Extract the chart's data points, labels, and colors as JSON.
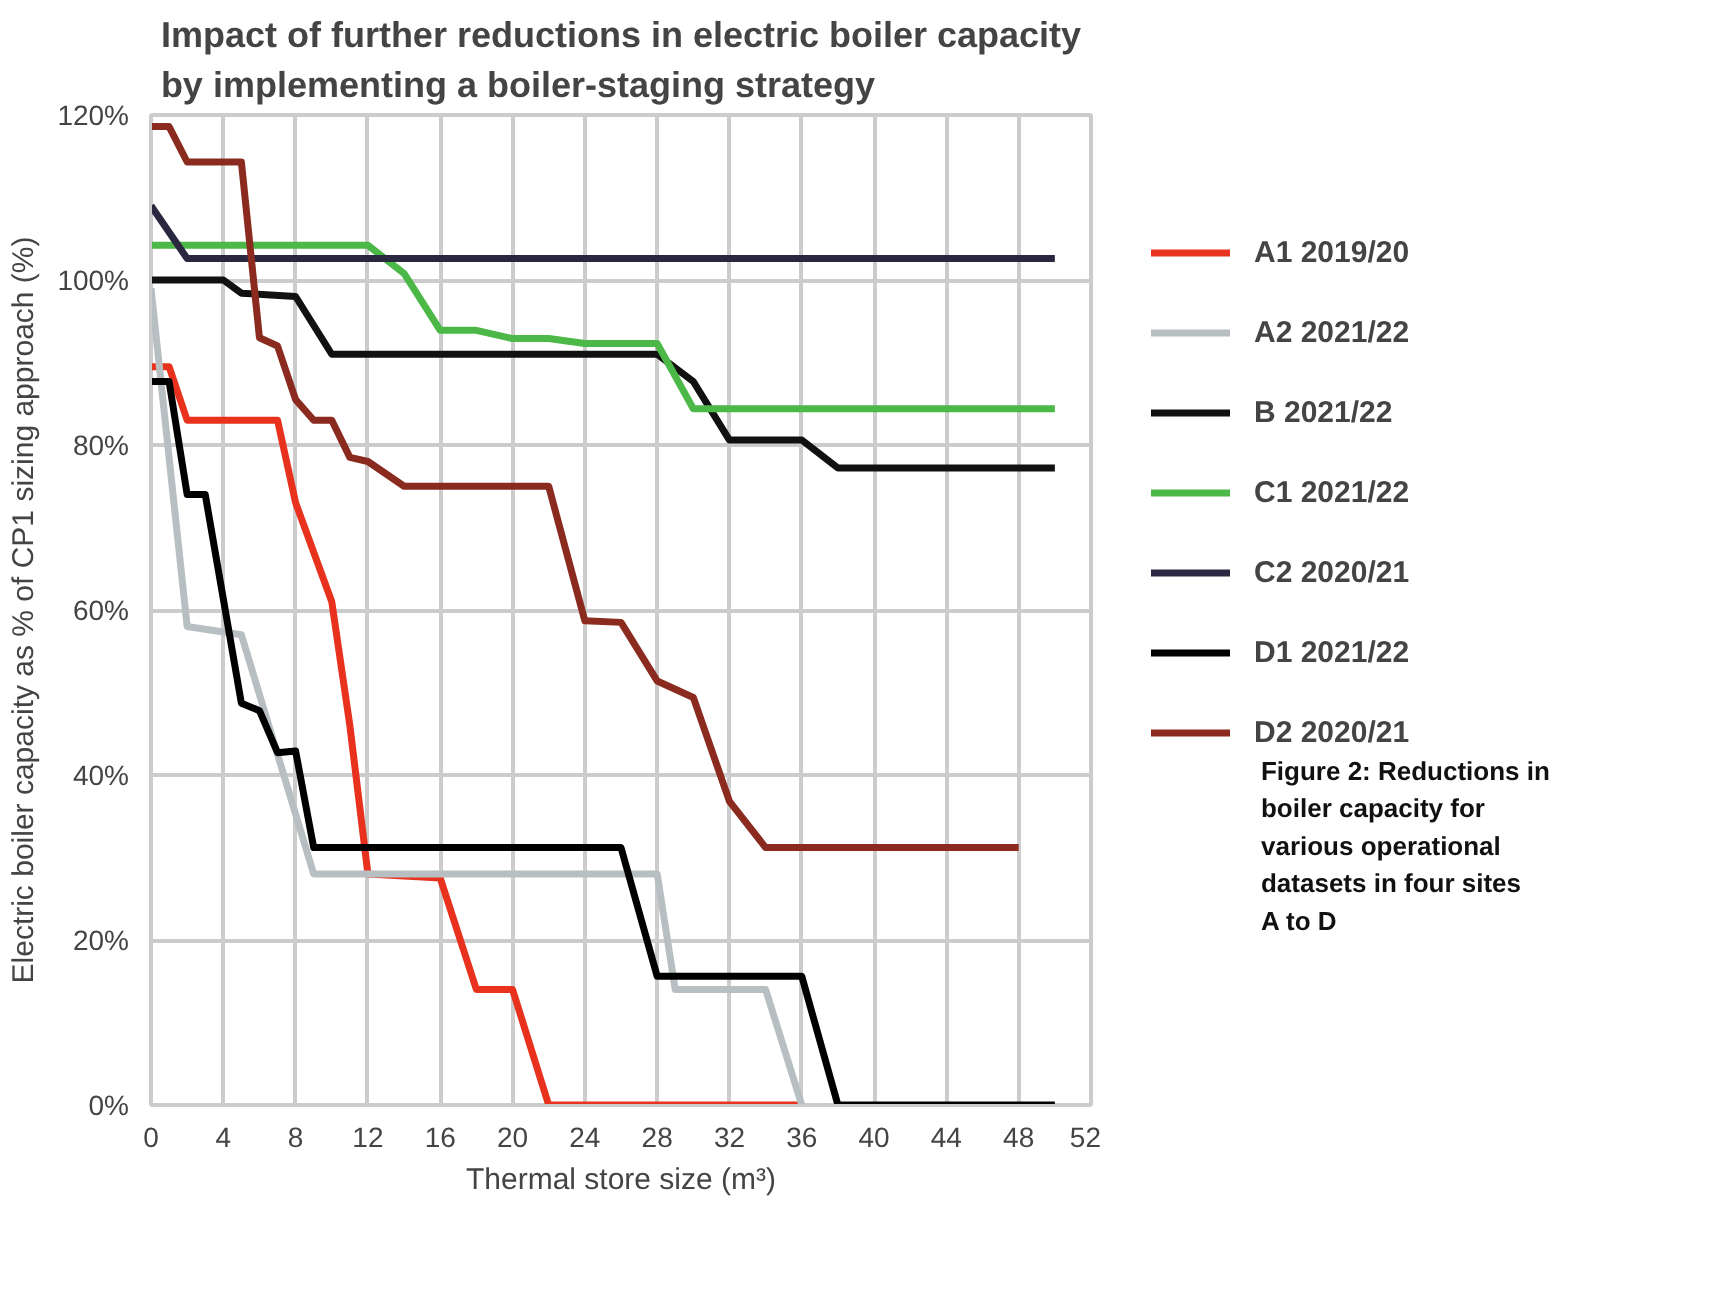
{
  "chart_data": {
    "type": "line",
    "title": "Impact of further reductions in electric boiler capacity by implementing a boiler-staging strategy",
    "xlabel": "Thermal store size (m³)",
    "ylabel": "Electric boiler capacity as % of CP1 sizing approach (%)",
    "xlim": [
      0,
      52
    ],
    "xticks": [
      0,
      4,
      8,
      12,
      16,
      20,
      24,
      28,
      32,
      36,
      40,
      44,
      48,
      52
    ],
    "ylim": [
      0,
      120
    ],
    "yticks": [
      {
        "value": 0,
        "label": "0%"
      },
      {
        "value": 20,
        "label": "20%"
      },
      {
        "value": 40,
        "label": "40%"
      },
      {
        "value": 60,
        "label": "60%"
      },
      {
        "value": 80,
        "label": "80%"
      },
      {
        "value": 100,
        "label": "100%"
      },
      {
        "value": 120,
        "label": "120%"
      }
    ],
    "grid": true,
    "legend": "right",
    "marker": "none",
    "line_style": "solid",
    "annotations": [
      "Figure 2: Reductions in boiler capacity for various operational datasets in four sites A to D"
    ],
    "series": [
      {
        "name": "A1 2019/20",
        "color": "#e8321e",
        "x": [
          0,
          1,
          2,
          7,
          8,
          10,
          11,
          12,
          16,
          18,
          20,
          22,
          36
        ],
        "values": [
          89.5,
          89.5,
          83,
          83,
          73,
          61,
          46,
          28,
          27.5,
          14,
          14,
          0,
          0
        ]
      },
      {
        "name": "A2 2021/22",
        "color": "#b8bfc2",
        "x": [
          0,
          2,
          5,
          9,
          28,
          29,
          34,
          36
        ],
        "values": [
          99,
          58,
          57,
          28,
          28,
          14,
          14,
          0
        ]
      },
      {
        "name": "B 2021/22",
        "color": "#111111",
        "x": [
          0,
          4,
          5,
          8,
          10,
          28,
          30,
          32,
          36,
          38,
          50
        ],
        "values": [
          100,
          100,
          98.4,
          98,
          91,
          91,
          87.7,
          80.6,
          80.6,
          77.2,
          77.2
        ]
      },
      {
        "name": "C1 2021/22",
        "color": "#4cb848",
        "x": [
          0,
          12,
          14,
          16,
          18,
          20,
          22,
          24,
          28,
          30,
          50
        ],
        "values": [
          104.2,
          104.2,
          100.8,
          93.9,
          93.9,
          92.9,
          92.9,
          92.3,
          92.3,
          84.4,
          84.4
        ]
      },
      {
        "name": "C2 2020/21",
        "color": "#2a2840",
        "x": [
          0,
          2,
          50
        ],
        "values": [
          109,
          102.6,
          102.6
        ]
      },
      {
        "name": "D1 2021/22",
        "color": "#000000",
        "x": [
          0,
          1,
          2,
          3,
          5,
          6,
          7,
          8,
          9,
          26,
          28,
          36,
          38,
          50
        ],
        "values": [
          87.7,
          87.7,
          74,
          74,
          48.7,
          47.8,
          42.7,
          42.9,
          31.2,
          31.2,
          15.6,
          15.6,
          0,
          0
        ]
      },
      {
        "name": "D2 2020/21",
        "color": "#8b2a1e",
        "x": [
          0,
          1,
          2,
          5,
          6,
          7,
          8,
          9,
          10,
          11,
          12,
          14,
          22,
          24,
          26,
          28,
          30,
          32,
          34,
          48
        ],
        "values": [
          118.6,
          118.6,
          114.3,
          114.3,
          93,
          92,
          85.5,
          83,
          83,
          78.5,
          78,
          75,
          75,
          58.7,
          58.5,
          51.4,
          49.4,
          36.8,
          31.2,
          31.2
        ]
      }
    ]
  }
}
